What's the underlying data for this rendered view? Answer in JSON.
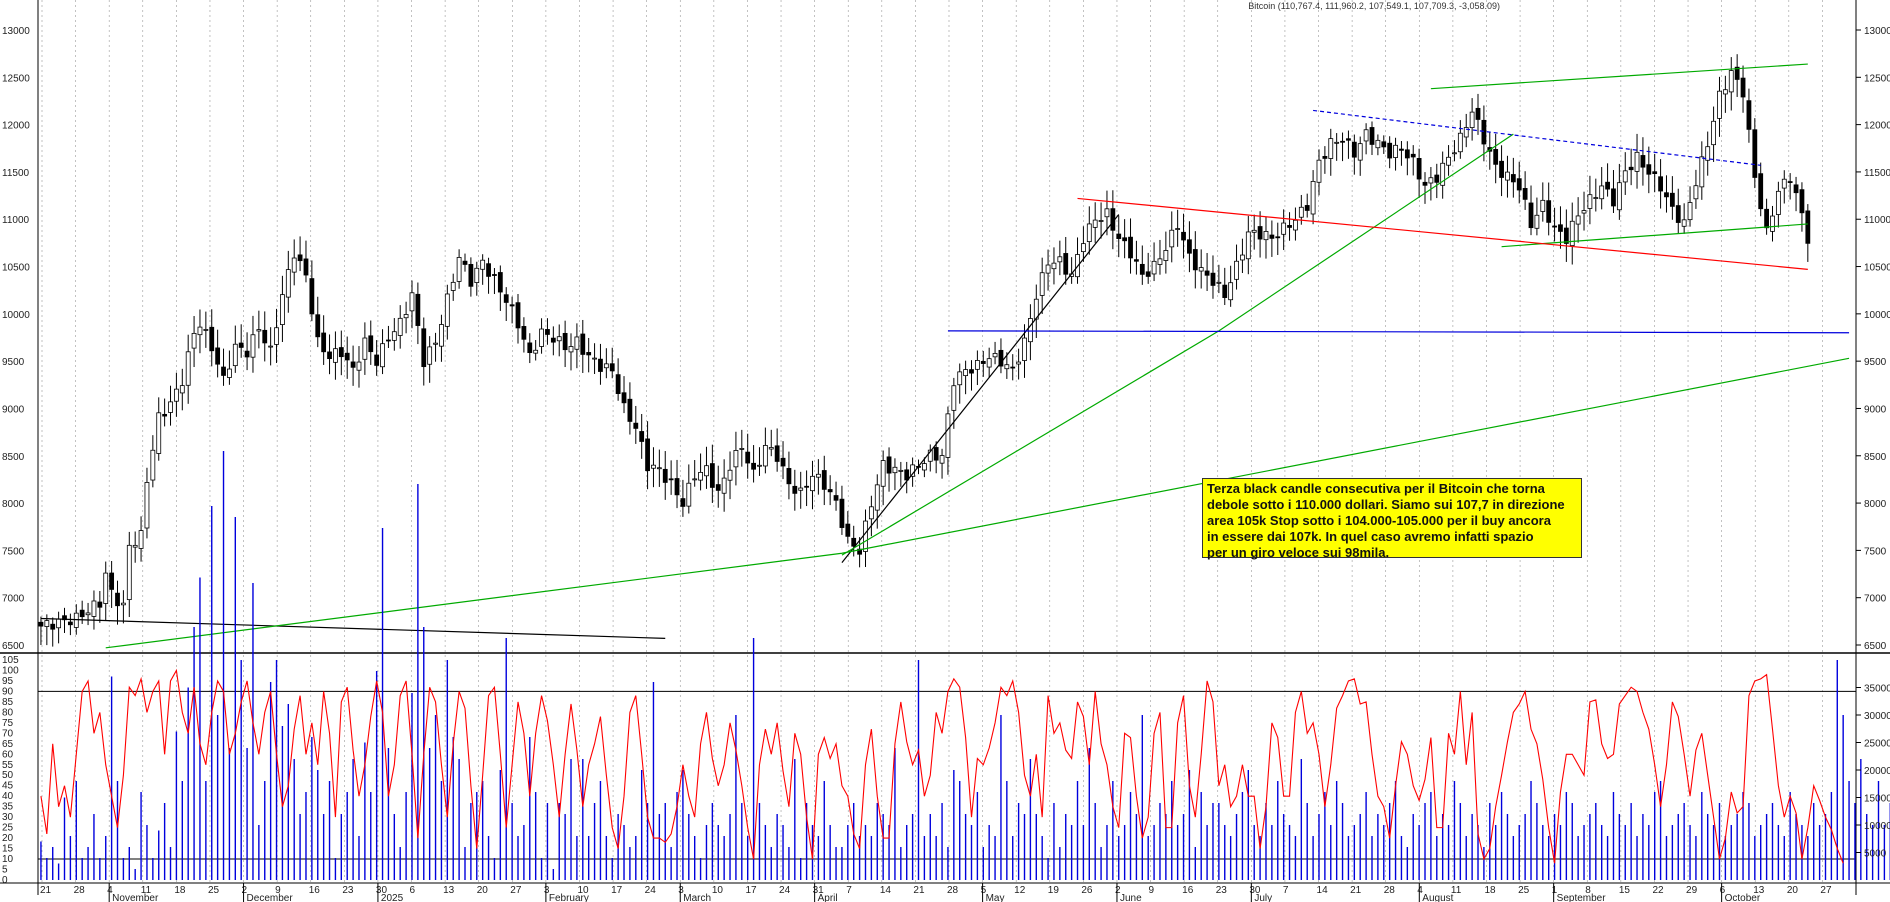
{
  "chart_data": [
    {
      "type": "candlestick",
      "title": "Bitcoin (110,767.4, 111,960.2, 107,549.1, 107,709.3, -3,058.09)",
      "y_ticks": [
        "6500",
        "7000",
        "7500",
        "8000",
        "8500",
        "9000",
        "9500",
        "10000",
        "10500",
        "11000",
        "11500",
        "12000",
        "12500",
        "13000"
      ],
      "ylim": [
        6500,
        13000
      ],
      "grid": "vertical dashed",
      "month_labels": [
        "November",
        "December",
        "2025",
        "February",
        "March",
        "April",
        "May",
        "June",
        "July",
        "August",
        "September",
        "October"
      ],
      "day_labels": [
        "21",
        "28",
        "4",
        "11",
        "18",
        "25",
        "2",
        "9",
        "16",
        "23",
        "30",
        "6",
        "13",
        "20",
        "27",
        "3",
        "10",
        "17",
        "24",
        "3",
        "10",
        "17",
        "24",
        "31",
        "7",
        "14",
        "21",
        "28",
        "5",
        "12",
        "19",
        "26",
        "2",
        "9",
        "16",
        "23",
        "30",
        "7",
        "14",
        "21",
        "28",
        "4",
        "11",
        "18",
        "25",
        "1",
        "8",
        "15",
        "22",
        "29",
        "6",
        "13",
        "20",
        "27"
      ],
      "price_path": [
        [
          0,
          6700
        ],
        [
          6,
          6780
        ],
        [
          10,
          6950
        ],
        [
          11,
          7250
        ],
        [
          12,
          7050
        ],
        [
          14,
          6900
        ],
        [
          15,
          7550
        ],
        [
          17,
          7650
        ],
        [
          18,
          8250
        ],
        [
          20,
          8900
        ],
        [
          22,
          9050
        ],
        [
          24,
          9300
        ],
        [
          26,
          9800
        ],
        [
          27,
          9900
        ],
        [
          29,
          9650
        ],
        [
          31,
          9300
        ],
        [
          33,
          9650
        ],
        [
          35,
          9600
        ],
        [
          37,
          9850
        ],
        [
          39,
          9600
        ],
        [
          41,
          10200
        ],
        [
          43,
          10650
        ],
        [
          45,
          10400
        ],
        [
          47,
          9700
        ],
        [
          49,
          9550
        ],
        [
          51,
          9600
        ],
        [
          53,
          9400
        ],
        [
          55,
          9700
        ],
        [
          57,
          9500
        ],
        [
          59,
          9750
        ],
        [
          61,
          9900
        ],
        [
          63,
          10200
        ],
        [
          65,
          9500
        ],
        [
          67,
          9700
        ],
        [
          69,
          10150
        ],
        [
          71,
          10600
        ],
        [
          73,
          10350
        ],
        [
          75,
          10550
        ],
        [
          77,
          10350
        ],
        [
          79,
          10150
        ],
        [
          81,
          9900
        ],
        [
          83,
          9550
        ],
        [
          85,
          9800
        ],
        [
          87,
          9750
        ],
        [
          89,
          9650
        ],
        [
          91,
          9700
        ],
        [
          93,
          9550
        ],
        [
          95,
          9450
        ],
        [
          97,
          9400
        ],
        [
          99,
          9000
        ],
        [
          101,
          8800
        ],
        [
          103,
          8400
        ],
        [
          105,
          8350
        ],
        [
          107,
          8200
        ],
        [
          109,
          8000
        ],
        [
          111,
          8300
        ],
        [
          113,
          8350
        ],
        [
          115,
          8100
        ],
        [
          117,
          8400
        ],
        [
          119,
          8600
        ],
        [
          121,
          8300
        ],
        [
          123,
          8600
        ],
        [
          125,
          8500
        ],
        [
          127,
          8200
        ],
        [
          129,
          8100
        ],
        [
          131,
          8300
        ],
        [
          133,
          8200
        ],
        [
          135,
          8000
        ],
        [
          137,
          7600
        ],
        [
          139,
          7500
        ],
        [
          141,
          8000
        ],
        [
          143,
          8400
        ],
        [
          145,
          8350
        ],
        [
          147,
          8300
        ],
        [
          149,
          8400
        ],
        [
          151,
          8500
        ],
        [
          153,
          8500
        ],
        [
          155,
          9300
        ],
        [
          157,
          9400
        ],
        [
          159,
          9450
        ],
        [
          161,
          9550
        ],
        [
          163,
          9500
        ],
        [
          165,
          9400
        ],
        [
          167,
          9700
        ],
        [
          169,
          10200
        ],
        [
          171,
          10550
        ],
        [
          173,
          10550
        ],
        [
          175,
          10400
        ],
        [
          177,
          10800
        ],
        [
          179,
          11000
        ],
        [
          181,
          11050
        ],
        [
          183,
          10800
        ],
        [
          185,
          10650
        ],
        [
          187,
          10400
        ],
        [
          189,
          10500
        ],
        [
          191,
          10700
        ],
        [
          193,
          10950
        ],
        [
          195,
          10600
        ],
        [
          197,
          10450
        ],
        [
          199,
          10350
        ],
        [
          201,
          10200
        ],
        [
          203,
          10500
        ],
        [
          205,
          10850
        ],
        [
          207,
          10850
        ],
        [
          209,
          10800
        ],
        [
          211,
          10900
        ],
        [
          213,
          11000
        ],
        [
          215,
          11150
        ],
        [
          217,
          11600
        ],
        [
          219,
          11800
        ],
        [
          221,
          11850
        ],
        [
          223,
          11700
        ],
        [
          225,
          11900
        ],
        [
          227,
          11800
        ],
        [
          229,
          11700
        ],
        [
          231,
          11750
        ],
        [
          233,
          11600
        ],
        [
          235,
          11350
        ],
        [
          237,
          11450
        ],
        [
          239,
          11650
        ],
        [
          241,
          11850
        ],
        [
          243,
          12150
        ],
        [
          245,
          11850
        ],
        [
          247,
          11550
        ],
        [
          249,
          11450
        ],
        [
          251,
          11350
        ],
        [
          253,
          10950
        ],
        [
          255,
          11150
        ],
        [
          257,
          10900
        ],
        [
          259,
          10800
        ],
        [
          261,
          11050
        ],
        [
          263,
          11200
        ],
        [
          265,
          11350
        ],
        [
          267,
          11200
        ],
        [
          269,
          11500
        ],
        [
          271,
          11650
        ],
        [
          273,
          11500
        ],
        [
          275,
          11350
        ],
        [
          277,
          11100
        ],
        [
          279,
          10950
        ],
        [
          281,
          11400
        ],
        [
          283,
          11800
        ],
        [
          285,
          12300
        ],
        [
          287,
          12550
        ],
        [
          289,
          12350
        ],
        [
          291,
          11450
        ],
        [
          293,
          10850
        ],
        [
          295,
          11300
        ],
        [
          297,
          11450
        ],
        [
          299,
          11050
        ],
        [
          300,
          10800
        ]
      ],
      "trendlines": [
        {
          "color": "#000000",
          "points": [
            [
              0,
              6780
            ],
            [
              106,
              6570
            ]
          ]
        },
        {
          "color": "#000000",
          "points": [
            [
              136,
              7370
            ],
            [
              183,
              11050
            ]
          ]
        },
        {
          "color": "#00aa00",
          "points": [
            [
              11,
              6470
            ],
            [
              136,
              7470
            ],
            [
              307,
              9530
            ]
          ]
        },
        {
          "color": "#00aa00",
          "points": [
            [
              136,
              7450
            ],
            [
              200,
              9820
            ],
            [
              250,
              11900
            ]
          ]
        },
        {
          "color": "#00aa00",
          "points": [
            [
              236,
              12380
            ],
            [
              300,
              12640
            ]
          ]
        },
        {
          "color": "#00aa00",
          "points": [
            [
              248,
              10710
            ],
            [
              300,
              10950
            ]
          ]
        },
        {
          "color": "#ff0000",
          "points": [
            [
              176,
              11220
            ],
            [
              300,
              10470
            ]
          ]
        },
        {
          "color": "#0000dd",
          "points": [
            [
              154,
              9820
            ],
            [
              307,
              9800
            ]
          ]
        },
        {
          "color": "#0000dd",
          "dashed": true,
          "points": [
            [
              216,
              12150
            ],
            [
              292,
              11570
            ]
          ]
        }
      ],
      "annotation": [
        "Terza black candle consecutiva per il Bitcoin che torna",
        "debole sotto i 110.000 dollari.  Siamo sui 107,7 in direzione",
        "area 105k Stop sotto i 104.000-105.000 per il buy ancora",
        "in essere dai 107k. In quel caso avremo infatti spazio",
        "per un giro veloce sui 98mila."
      ]
    },
    {
      "type": "line+bar",
      "left_ticks": [
        "0",
        "5",
        "10",
        "15",
        "20",
        "25",
        "30",
        "35",
        "40",
        "45",
        "50",
        "55",
        "60",
        "65",
        "70",
        "75",
        "80",
        "85",
        "90",
        "95",
        "100",
        "105"
      ],
      "right_ticks": [
        "5000",
        "10000",
        "15000",
        "20000",
        "25000",
        "30000",
        "35000"
      ],
      "left_ylim": [
        0,
        105
      ],
      "right_ylim": [
        0,
        40000
      ],
      "reference_levels": [
        10,
        90
      ],
      "stochastic": [
        40,
        22,
        65,
        35,
        45,
        30,
        60,
        90,
        95,
        70,
        80,
        55,
        40,
        25,
        50,
        92,
        88,
        96,
        80,
        90,
        95,
        60,
        95,
        100,
        80,
        70,
        92,
        65,
        55,
        80,
        95,
        90,
        60,
        70,
        85,
        95,
        75,
        60,
        80,
        90,
        60,
        35,
        45,
        72,
        88,
        60,
        75,
        55,
        90,
        70,
        30,
        85,
        92,
        62,
        40,
        55,
        78,
        95,
        80,
        40,
        55,
        88,
        95,
        60,
        20,
        60,
        92,
        85,
        55,
        30,
        65,
        90,
        82,
        45,
        15,
        50,
        88,
        92,
        60,
        25,
        55,
        85,
        70,
        40,
        70,
        88,
        76,
        55,
        30,
        60,
        84,
        62,
        35,
        55,
        65,
        78,
        50,
        25,
        15,
        40,
        80,
        88,
        60,
        30,
        20,
        20,
        18,
        22,
        35,
        55,
        40,
        30,
        65,
        80,
        58,
        45,
        55,
        75,
        62,
        45,
        25,
        10,
        55,
        72,
        60,
        75,
        52,
        35,
        70,
        60,
        30,
        10,
        60,
        68,
        58,
        65,
        45,
        40,
        22,
        15,
        55,
        72,
        40,
        20,
        20,
        65,
        85,
        66,
        55,
        62,
        40,
        50,
        80,
        70,
        90,
        96,
        92,
        68,
        30,
        58,
        55,
        63,
        75,
        92,
        88,
        95,
        80,
        50,
        40,
        60,
        30,
        88,
        70,
        75,
        62,
        58,
        85,
        78,
        55,
        90,
        65,
        55,
        35,
        25,
        70,
        68,
        40,
        20,
        30,
        70,
        80,
        25,
        25,
        75,
        88,
        45,
        30,
        60,
        95,
        85,
        45,
        55,
        35,
        40,
        55,
        40,
        40,
        15,
        35,
        75,
        68,
        40,
        40,
        80,
        90,
        70,
        75,
        60,
        35,
        55,
        82,
        88,
        95,
        96,
        84,
        85,
        60,
        40,
        35,
        20,
        45,
        66,
        60,
        45,
        38,
        48,
        68,
        25,
        25,
        70,
        60,
        90,
        55,
        80,
        22,
        10,
        15,
        35,
        50,
        66,
        80,
        84,
        90,
        72,
        65,
        48,
        25,
        8,
        42,
        60,
        60,
        55,
        50,
        85,
        86,
        65,
        58,
        60,
        84,
        88,
        92,
        90,
        80,
        72,
        55,
        35,
        55,
        85,
        78,
        60,
        40,
        62,
        70,
        50,
        30,
        10,
        20,
        42,
        32,
        35,
        88,
        95,
        96,
        98,
        72,
        45,
        30,
        40,
        32,
        10,
        25,
        45,
        38,
        30,
        24,
        15,
        8
      ],
      "volume": [
        7,
        4,
        6,
        3,
        15,
        8,
        18,
        4,
        6,
        12,
        4,
        8,
        37,
        18,
        4,
        6,
        2,
        16,
        10,
        4,
        9,
        14,
        6,
        27,
        18,
        35,
        46,
        55,
        18,
        68,
        30,
        78,
        24,
        66,
        40,
        24,
        54,
        10,
        18,
        36,
        40,
        28,
        32,
        22,
        12,
        16,
        26,
        20,
        12,
        18,
        4,
        12,
        16,
        22,
        8,
        25,
        16,
        38,
        64,
        24,
        12,
        6,
        16,
        34,
        72,
        46,
        24,
        30,
        18,
        40,
        26,
        22,
        6,
        14,
        16,
        18,
        8,
        4,
        20,
        44,
        14,
        8,
        10,
        26,
        16,
        4,
        14,
        2,
        14,
        12,
        22,
        8,
        22,
        8,
        14,
        18,
        8,
        4,
        12,
        10,
        6,
        8,
        20,
        14,
        36,
        12,
        14,
        6,
        16,
        20,
        12,
        8,
        4,
        10,
        14,
        10,
        8,
        12,
        30,
        14,
        8,
        44,
        14,
        10,
        6,
        12,
        10,
        6,
        22,
        4,
        14,
        10,
        8,
        18,
        10,
        6,
        6,
        10,
        14,
        8,
        10,
        8,
        14,
        12,
        10,
        24,
        6,
        10,
        12,
        40,
        8,
        12,
        8,
        14,
        6,
        20,
        18,
        12,
        10,
        16,
        6,
        10,
        8,
        30,
        18,
        8,
        14,
        12,
        22,
        12,
        8,
        4,
        14,
        6,
        12,
        10,
        18,
        10,
        24,
        14,
        6,
        10,
        18,
        8,
        10,
        16,
        12,
        30,
        8,
        10,
        14,
        12,
        18,
        10,
        12,
        20,
        6,
        16,
        10,
        14,
        14,
        10,
        8,
        12,
        16,
        20,
        10,
        8,
        14,
        10,
        18,
        12,
        10,
        8,
        22,
        14,
        8,
        12,
        16,
        10,
        18,
        14,
        8,
        10,
        12,
        16,
        8,
        12,
        10,
        14,
        18,
        8,
        6,
        12,
        10,
        14,
        16,
        8,
        12,
        10,
        18,
        14,
        8,
        12,
        10,
        6,
        14,
        10,
        16,
        12,
        8,
        10,
        12,
        18,
        14,
        10,
        8,
        12,
        10,
        16,
        14,
        8,
        10,
        12,
        14,
        10,
        8,
        16,
        12,
        10,
        14,
        8,
        12,
        10,
        16,
        18,
        8,
        10,
        12,
        14,
        10,
        8,
        16,
        12,
        10,
        14,
        8,
        10,
        12,
        16,
        14,
        8,
        10,
        12,
        14,
        10,
        8,
        16,
        12,
        10,
        8,
        14,
        10,
        12,
        16,
        40,
        30,
        18,
        14,
        22,
        12,
        10,
        18,
        10,
        14,
        12,
        18,
        18
      ]
    }
  ]
}
